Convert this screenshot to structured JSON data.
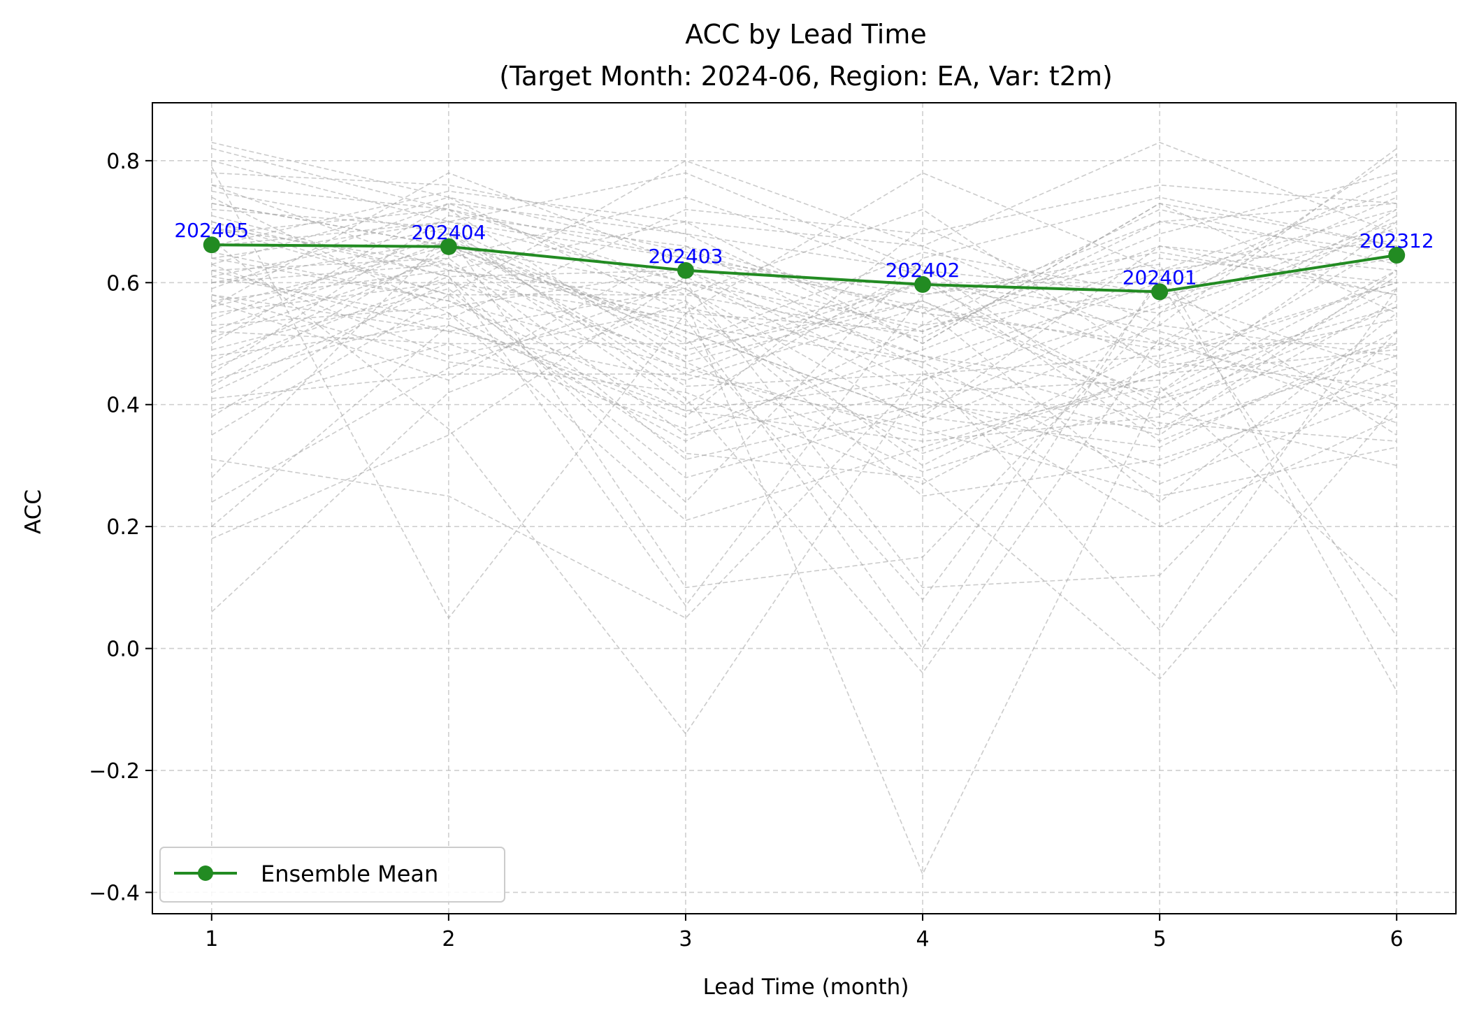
{
  "chart_data": {
    "type": "line",
    "title": "ACC by Lead Time",
    "subtitle": "(Target Month: 2024-06, Region: EA, Var: t2m)",
    "xlabel": "Lead Time (month)",
    "ylabel": "ACC",
    "xlim": [
      0.75,
      6.25
    ],
    "ylim": [
      -0.435,
      0.895
    ],
    "x_ticks": [
      1,
      2,
      3,
      4,
      5,
      6
    ],
    "y_ticks": [
      -0.4,
      -0.2,
      0.0,
      0.2,
      0.4,
      0.6,
      0.8
    ],
    "y_tick_labels": [
      "−0.4",
      "−0.2",
      "0.0",
      "0.2",
      "0.4",
      "0.6",
      "0.8"
    ],
    "grid": true,
    "legend_position": "lower-left",
    "colors": {
      "mean": "#228b22",
      "members": "#a9a9a9",
      "annotation": "#0000ff",
      "grid": "#b0b0b0"
    },
    "series": [
      {
        "name": "Ensemble Mean",
        "x": [
          1,
          2,
          3,
          4,
          5,
          6
        ],
        "values": [
          0.662,
          0.659,
          0.62,
          0.597,
          0.585,
          0.645
        ],
        "annotations": [
          "202405",
          "202404",
          "202403",
          "202402",
          "202401",
          "202312"
        ]
      }
    ],
    "members": [
      [
        0.83,
        0.74,
        0.65,
        0.55,
        0.5,
        0.72
      ],
      [
        0.82,
        0.72,
        0.6,
        0.48,
        0.42,
        0.7
      ],
      [
        0.8,
        0.7,
        0.78,
        0.62,
        0.47,
        0.6
      ],
      [
        0.78,
        0.76,
        0.68,
        0.5,
        0.73,
        0.55
      ],
      [
        0.76,
        0.62,
        0.55,
        0.78,
        0.62,
        0.75
      ],
      [
        0.75,
        0.68,
        0.43,
        0.45,
        0.35,
        0.62
      ],
      [
        0.73,
        0.66,
        0.59,
        0.37,
        0.53,
        0.48
      ],
      [
        0.72,
        0.69,
        0.5,
        0.6,
        0.55,
        0.81
      ],
      [
        0.7,
        0.58,
        0.8,
        0.66,
        0.83,
        0.68
      ],
      [
        0.69,
        0.63,
        0.47,
        0.29,
        0.41,
        0.5
      ],
      [
        0.68,
        0.72,
        0.64,
        0.58,
        0.65,
        0.58
      ],
      [
        0.66,
        0.75,
        0.7,
        0.66,
        0.5,
        0.4
      ],
      [
        0.65,
        0.57,
        0.39,
        0.34,
        0.38,
        0.61
      ],
      [
        0.64,
        0.7,
        0.6,
        0.53,
        0.72,
        0.63
      ],
      [
        0.63,
        0.48,
        0.56,
        0.47,
        0.6,
        0.35
      ],
      [
        0.62,
        0.64,
        0.35,
        0.42,
        0.44,
        0.67
      ],
      [
        0.61,
        0.54,
        0.72,
        0.68,
        0.76,
        0.73
      ],
      [
        0.6,
        0.67,
        0.52,
        0.38,
        0.33,
        0.52
      ],
      [
        0.59,
        0.73,
        0.68,
        0.62,
        0.58,
        0.45
      ],
      [
        0.58,
        0.52,
        0.44,
        0.56,
        0.49,
        0.71
      ],
      [
        0.57,
        0.62,
        0.57,
        0.25,
        0.31,
        0.44
      ],
      [
        0.56,
        0.78,
        0.63,
        0.52,
        0.68,
        0.78
      ],
      [
        0.55,
        0.6,
        0.48,
        0.6,
        0.4,
        0.56
      ],
      [
        0.54,
        0.68,
        0.1,
        0.15,
        0.55,
        0.69
      ],
      [
        0.53,
        0.56,
        0.62,
        0.43,
        0.2,
        0.38
      ],
      [
        0.52,
        0.5,
        0.36,
        0.49,
        0.64,
        0.6
      ],
      [
        0.5,
        0.73,
        0.58,
        0.72,
        0.46,
        0.54
      ],
      [
        0.49,
        0.59,
        0.28,
        0.39,
        0.57,
        0.74
      ],
      [
        0.47,
        0.65,
        0.53,
        0.47,
        0.27,
        0.42
      ],
      [
        0.45,
        0.71,
        0.66,
        0.55,
        0.7,
        0.65
      ],
      [
        0.44,
        0.55,
        0.21,
        0.33,
        0.45,
        0.49
      ],
      [
        0.43,
        0.66,
        0.4,
        0.63,
        0.36,
        0.57
      ],
      [
        0.42,
        0.6,
        0.54,
        0.0,
        0.61,
        0.72
      ],
      [
        0.41,
        0.45,
        0.45,
        0.36,
        0.25,
        0.33
      ],
      [
        0.38,
        0.62,
        0.7,
        0.5,
        0.73,
        0.66
      ],
      [
        0.35,
        0.58,
        0.32,
        0.28,
        -0.05,
        0.4
      ],
      [
        0.31,
        0.25,
        0.05,
        0.45,
        0.48,
        0.6
      ],
      [
        0.28,
        0.68,
        0.49,
        0.57,
        0.39,
        0.3
      ],
      [
        0.24,
        0.46,
        0.6,
        0.1,
        0.12,
        0.52
      ],
      [
        0.2,
        0.53,
        0.38,
        0.69,
        0.53,
        0.82
      ],
      [
        0.18,
        0.35,
        0.61,
        0.41,
        0.3,
        0.46
      ],
      [
        0.06,
        0.42,
        0.57,
        -0.37,
        0.42,
        0.62
      ],
      [
        0.79,
        0.05,
        0.55,
        0.52,
        0.66,
        0.58
      ],
      [
        0.67,
        0.36,
        -0.14,
        0.44,
        0.56,
        0.7
      ],
      [
        0.71,
        0.61,
        0.07,
        0.58,
        0.63,
        -0.07
      ],
      [
        0.61,
        0.69,
        0.41,
        -0.04,
        0.51,
        0.37
      ],
      [
        0.57,
        0.44,
        0.66,
        0.46,
        0.03,
        0.59
      ],
      [
        0.73,
        0.66,
        0.51,
        0.08,
        0.6,
        0.02
      ],
      [
        0.46,
        0.61,
        0.24,
        0.64,
        0.74,
        0.66
      ],
      [
        0.64,
        0.57,
        0.46,
        0.35,
        0.43,
        0.08
      ],
      [
        0.51,
        0.64,
        0.74,
        0.61,
        0.34,
        0.5
      ],
      [
        0.74,
        0.55,
        0.34,
        0.53,
        0.59,
        0.77
      ],
      [
        0.58,
        0.47,
        0.42,
        0.27,
        0.47,
        0.43
      ],
      [
        0.66,
        0.7,
        0.64,
        0.56,
        0.24,
        0.55
      ],
      [
        0.39,
        0.5,
        0.5,
        0.65,
        0.58,
        0.64
      ],
      [
        0.6,
        0.63,
        0.31,
        0.4,
        0.36,
        0.48
      ],
      [
        0.69,
        0.58,
        0.58,
        0.51,
        0.7,
        0.73
      ],
      [
        0.52,
        0.67,
        0.45,
        0.6,
        0.52,
        0.41
      ],
      [
        0.63,
        0.74,
        0.55,
        0.32,
        0.45,
        0.56
      ],
      [
        0.48,
        0.53,
        0.39,
        0.44,
        0.62,
        0.67
      ],
      [
        0.7,
        0.61,
        0.62,
        0.48,
        0.37,
        0.34
      ],
      [
        0.56,
        0.66,
        0.52,
        0.38,
        0.66,
        0.62
      ],
      [
        0.76,
        0.72,
        0.47,
        0.57,
        0.41,
        0.59
      ],
      [
        0.62,
        0.52,
        0.59,
        0.3,
        0.5,
        0.5
      ]
    ]
  }
}
